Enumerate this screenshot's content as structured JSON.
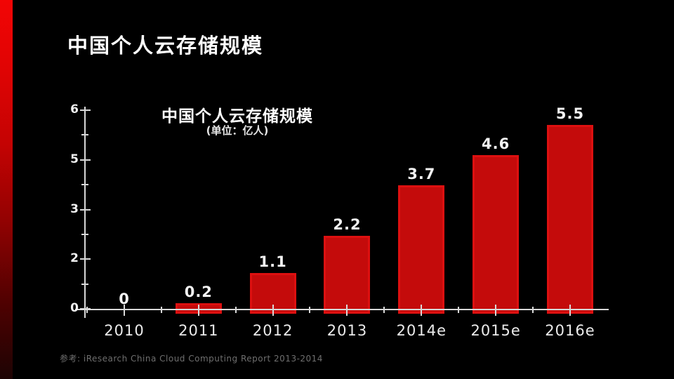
{
  "slide": {
    "title": "中国个人云存储规模",
    "source": "参考: iResearch  China Cloud Computing Report 2013-2014",
    "background_color": "#000000",
    "accent_color": "#e00404"
  },
  "chart_data": {
    "type": "bar",
    "title": "中国个人云存储规模",
    "subtitle": "(单位：亿人)",
    "unit": "亿人",
    "categories": [
      "2010",
      "2011",
      "2012",
      "2013",
      "2014e",
      "2015e",
      "2016e"
    ],
    "values": [
      0,
      0.2,
      1.1,
      2.2,
      3.7,
      4.6,
      5.5
    ],
    "value_labels": [
      "0",
      "0.2",
      "1.1",
      "2.2",
      "3.7",
      "4.6",
      "5.5"
    ],
    "ylim": [
      0,
      6
    ],
    "y_tick_labels": [
      "6",
      "",
      "5",
      "",
      "3",
      "",
      "2",
      "",
      "0"
    ],
    "grid": false,
    "legend": false,
    "style": "hand-drawn",
    "bar_color": "#c40b0b",
    "bar_edge_color": "#dd1010",
    "axis_color": "#d8d8d8",
    "label_color": "#f2f2f2"
  }
}
